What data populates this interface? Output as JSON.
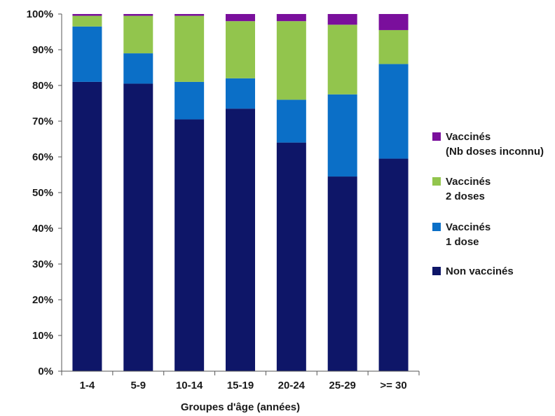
{
  "chart_data": {
    "type": "bar",
    "stacked": true,
    "categories": [
      "1-4",
      "5-9",
      "10-14",
      "15-19",
      "20-24",
      "25-29",
      ">= 30"
    ],
    "series": [
      {
        "name": "Non vaccinés",
        "color": "#0e1668",
        "values": [
          81,
          80.5,
          70.5,
          73.5,
          64,
          54.5,
          59.5
        ]
      },
      {
        "name": "Vaccinés 1 dose",
        "color": "#0b6fc7",
        "values": [
          15.5,
          8.5,
          10.5,
          8.5,
          12,
          23,
          26.5
        ]
      },
      {
        "name": "Vaccinés 2 doses",
        "color": "#92c54d",
        "values": [
          3,
          10.5,
          18.5,
          16,
          22,
          19.5,
          9.5
        ]
      },
      {
        "name": "Vaccinés (Nb doses inconnu)",
        "color": "#7a0f9c",
        "values": [
          0.5,
          0.5,
          0.5,
          2,
          2,
          3,
          4.5
        ]
      }
    ],
    "legend": [
      {
        "lines": [
          "Vaccinés",
          "(Nb doses inconnu)"
        ],
        "color": "#7a0f9c"
      },
      {
        "lines": [
          "Vaccinés",
          "2 doses"
        ],
        "color": "#92c54d"
      },
      {
        "lines": [
          "Vaccinés",
          "1 dose"
        ],
        "color": "#0b6fc7"
      },
      {
        "lines": [
          "Non vaccinés"
        ],
        "color": "#0e1668"
      }
    ],
    "legend_position": "right",
    "xlabel": "Groupes d'âge (années)",
    "ylabel": "",
    "ylim": [
      0,
      100
    ],
    "yticks": [
      "0%",
      "10%",
      "20%",
      "30%",
      "40%",
      "50%",
      "60%",
      "70%",
      "80%",
      "90%",
      "100%"
    ],
    "grid": false
  }
}
